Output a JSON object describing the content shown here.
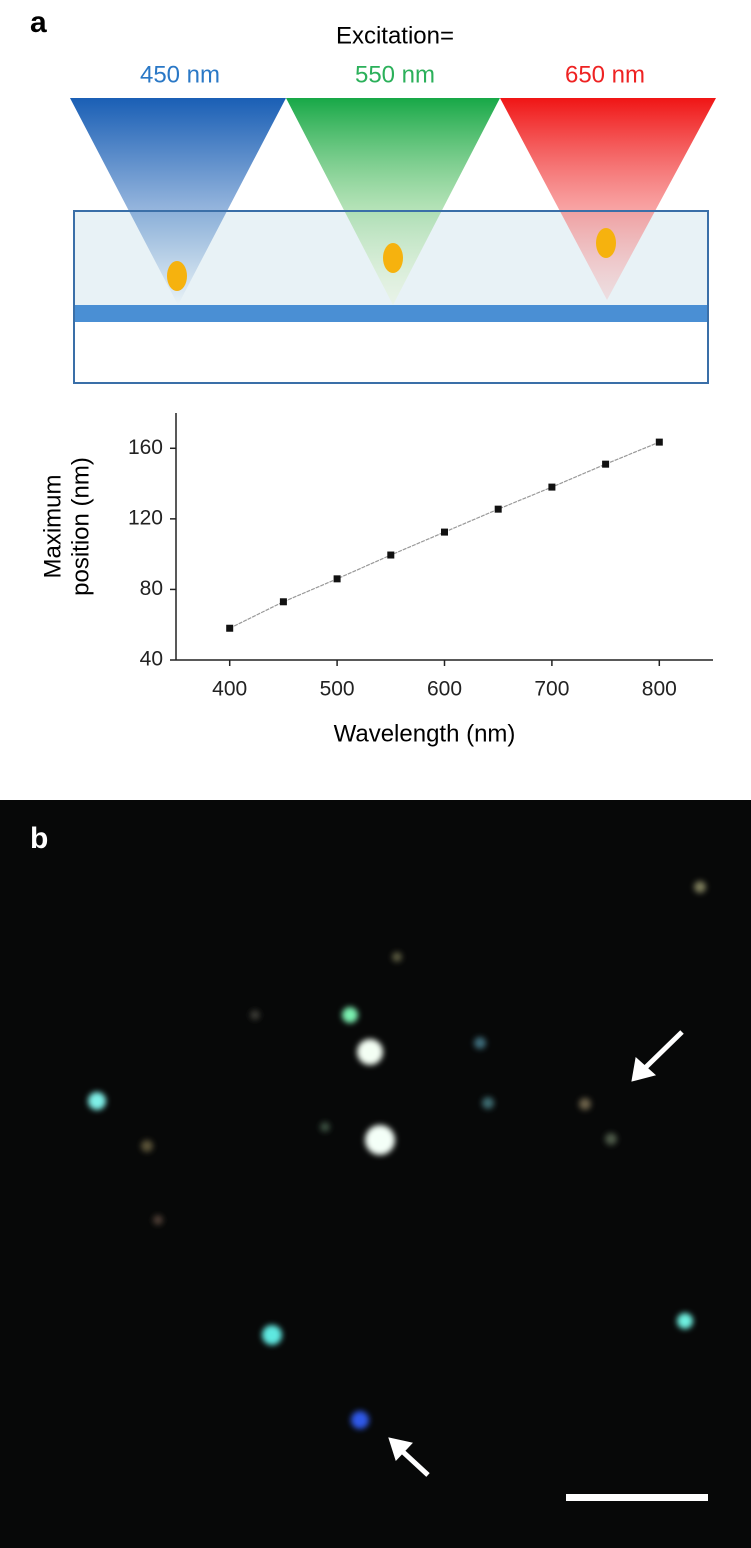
{
  "panel_a": {
    "label": "a",
    "excitation_title": "Excitation=",
    "beams": [
      {
        "label": "450 nm",
        "color": "#2a78c6"
      },
      {
        "label": "550 nm",
        "color": "#2bb05a"
      },
      {
        "label": "650 nm",
        "color": "#ee2222"
      }
    ]
  },
  "chart_data": {
    "type": "line",
    "xlabel": "Wavelength (nm)",
    "ylabel": [
      "Maximum",
      "position (nm)"
    ],
    "x": [
      400,
      450,
      500,
      550,
      600,
      650,
      700,
      750,
      800
    ],
    "series": [
      {
        "color": "#111111",
        "values": [
          58,
          73,
          86,
          99.5,
          112.5,
          125.5,
          138,
          151,
          163.5
        ]
      }
    ],
    "xlim": [
      350,
      850
    ],
    "xticks": [
      400,
      500,
      600,
      700,
      800
    ],
    "ylim": [
      40,
      180
    ],
    "yticks": [
      40,
      80,
      120,
      160
    ]
  },
  "panel_b": {
    "label": "b"
  }
}
